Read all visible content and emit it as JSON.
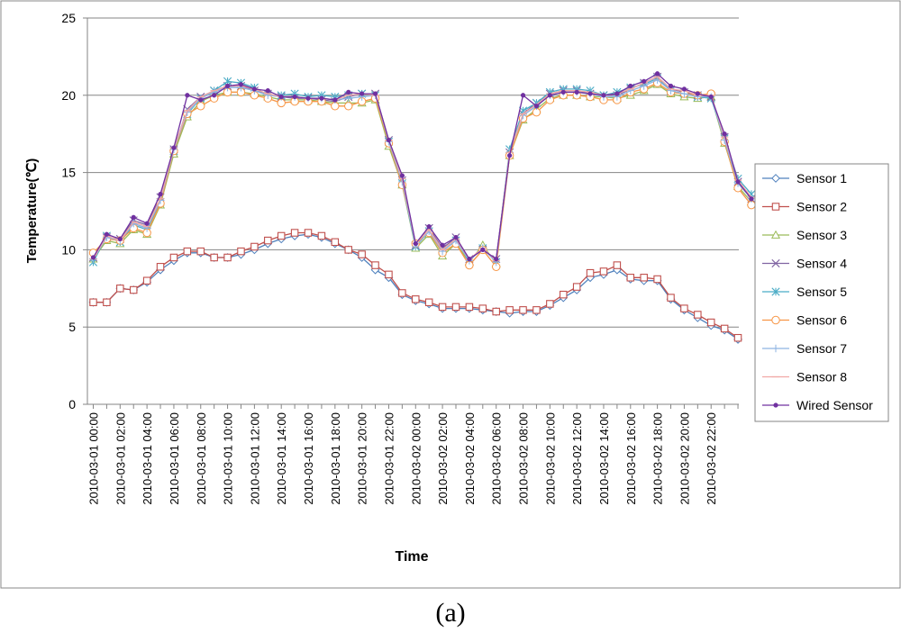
{
  "caption": "(a)",
  "chart_data": {
    "type": "line",
    "xlabel": "Time",
    "ylabel": "Temperature(℃)",
    "ylim": [
      0,
      25
    ],
    "yticks": [
      0,
      5,
      10,
      15,
      20,
      25
    ],
    "grid": "horizontal",
    "legend_position": "right",
    "x_start": "2010-03-01 00:00",
    "x_step_hours": 1,
    "x_tick_labels": [
      "2010-03-01 00:00",
      "2010-03-01 02:00",
      "2010-03-01 04:00",
      "2010-03-01 06:00",
      "2010-03-01 08:00",
      "2010-03-01 10:00",
      "2010-03-01 12:00",
      "2010-03-01 14:00",
      "2010-03-01 16:00",
      "2010-03-01 18:00",
      "2010-03-01 20:00",
      "2010-03-01 22:00",
      "2010-03-02 00:00",
      "2010-03-02 02:00",
      "2010-03-02 04:00",
      "2010-03-02 06:00",
      "2010-03-02 08:00",
      "2010-03-02 10:00",
      "2010-03-02 12:00",
      "2010-03-02 14:00",
      "2010-03-02 16:00",
      "2010-03-02 18:00",
      "2010-03-02 20:00",
      "2010-03-02 22:00"
    ],
    "series": [
      {
        "name": "Sensor 1",
        "color": "#4f81bd",
        "marker": "diamond-open",
        "values": [
          6.6,
          6.6,
          7.5,
          7.4,
          7.9,
          8.7,
          9.3,
          9.8,
          9.8,
          9.5,
          9.5,
          9.7,
          10.0,
          10.4,
          10.7,
          10.9,
          11.0,
          10.8,
          10.4,
          10.0,
          9.5,
          8.7,
          8.2,
          7.1,
          6.7,
          6.5,
          6.2,
          6.2,
          6.2,
          6.1,
          6.0,
          5.9,
          6.0,
          6.0,
          6.4,
          6.9,
          7.4,
          8.2,
          8.4,
          8.7,
          8.1,
          8.0,
          8.0,
          6.8,
          6.1,
          5.6,
          5.1,
          4.8,
          4.2
        ]
      },
      {
        "name": "Sensor 2",
        "color": "#c0504d",
        "marker": "square-open",
        "values": [
          6.6,
          6.6,
          7.5,
          7.4,
          8.0,
          8.9,
          9.5,
          9.9,
          9.9,
          9.5,
          9.5,
          9.9,
          10.2,
          10.6,
          10.9,
          11.1,
          11.1,
          10.9,
          10.5,
          10.0,
          9.7,
          9.0,
          8.4,
          7.2,
          6.8,
          6.6,
          6.3,
          6.3,
          6.3,
          6.2,
          6.0,
          6.1,
          6.1,
          6.1,
          6.5,
          7.1,
          7.6,
          8.5,
          8.6,
          9.0,
          8.2,
          8.2,
          8.1,
          6.9,
          6.2,
          5.8,
          5.3,
          4.9,
          4.3
        ]
      },
      {
        "name": "Sensor 3",
        "color": "#9bbb59",
        "marker": "triangle-open",
        "values": [
          9.4,
          10.6,
          10.4,
          11.3,
          11.0,
          12.9,
          16.2,
          18.6,
          19.6,
          20.0,
          20.2,
          20.2,
          20.1,
          19.9,
          19.7,
          19.7,
          19.7,
          19.6,
          19.5,
          19.5,
          19.5,
          19.7,
          16.7,
          14.2,
          10.1,
          11.0,
          9.6,
          10.4,
          9.2,
          10.3,
          9.1,
          16.1,
          18.4,
          19.1,
          19.8,
          20.0,
          20.0,
          19.9,
          19.9,
          19.8,
          20.0,
          20.3,
          20.7,
          20.1,
          19.9,
          19.8,
          19.9,
          16.9,
          14.1,
          13.1
        ]
      },
      {
        "name": "Sensor 4",
        "color": "#8064a2",
        "marker": "x",
        "values": [
          9.5,
          10.8,
          10.7,
          11.9,
          11.6,
          13.4,
          16.5,
          19.1,
          19.9,
          20.3,
          20.6,
          20.6,
          20.3,
          20.1,
          19.9,
          19.8,
          19.8,
          19.7,
          19.6,
          19.9,
          20.1,
          20.1,
          17.1,
          14.5,
          10.3,
          11.4,
          10.1,
          10.8,
          9.4,
          10.0,
          9.4,
          16.3,
          18.8,
          19.5,
          20.1,
          20.3,
          20.3,
          20.1,
          20.0,
          20.0,
          20.4,
          20.8,
          21.2,
          20.4,
          20.2,
          20.0,
          19.9,
          17.3,
          14.4,
          13.3
        ]
      },
      {
        "name": "Sensor 5",
        "color": "#4bacc6",
        "marker": "star",
        "values": [
          9.2,
          10.9,
          10.5,
          11.6,
          11.3,
          13.1,
          16.4,
          18.8,
          19.8,
          20.3,
          20.9,
          20.8,
          20.5,
          20.0,
          20.0,
          20.1,
          19.9,
          20.0,
          19.9,
          20.0,
          20.1,
          20.0,
          17.0,
          14.3,
          10.2,
          11.2,
          9.9,
          10.6,
          9.3,
          10.1,
          9.2,
          16.5,
          19.0,
          19.5,
          20.2,
          20.4,
          20.4,
          20.3,
          20.0,
          20.2,
          20.5,
          20.7,
          21.1,
          20.3,
          20.1,
          19.9,
          19.8,
          17.2,
          14.6,
          13.6
        ]
      },
      {
        "name": "Sensor 6",
        "color": "#f79646",
        "marker": "circle-open",
        "values": [
          9.8,
          10.7,
          10.6,
          11.4,
          11.1,
          13.0,
          16.4,
          18.8,
          19.3,
          19.8,
          20.2,
          20.2,
          20.0,
          19.8,
          19.5,
          19.6,
          19.6,
          19.6,
          19.3,
          19.3,
          19.6,
          19.8,
          16.9,
          14.2,
          10.4,
          11.1,
          9.8,
          10.4,
          9.0,
          10.0,
          8.9,
          16.1,
          18.5,
          18.9,
          19.7,
          20.0,
          20.0,
          19.9,
          19.7,
          19.7,
          20.2,
          20.4,
          20.8,
          20.2,
          20.1,
          20.0,
          20.1,
          17.0,
          14.0,
          12.9
        ]
      },
      {
        "name": "Sensor 7",
        "color": "#8db3e2",
        "marker": "plus",
        "values": [
          9.4,
          10.8,
          10.6,
          11.7,
          11.4,
          13.2,
          16.5,
          18.9,
          19.8,
          20.2,
          20.5,
          20.5,
          20.3,
          20.0,
          19.9,
          19.9,
          19.8,
          19.8,
          19.7,
          19.8,
          19.9,
          20.0,
          17.0,
          14.4,
          10.2,
          11.2,
          9.9,
          10.6,
          9.3,
          10.1,
          9.2,
          16.3,
          18.7,
          19.3,
          20.0,
          20.2,
          20.2,
          20.1,
          19.9,
          19.9,
          20.3,
          20.6,
          21.0,
          20.3,
          20.1,
          19.9,
          19.9,
          17.1,
          14.3,
          13.3
        ]
      },
      {
        "name": "Sensor 8",
        "color": "#f1a8a6",
        "marker": "dash",
        "values": [
          9.4,
          10.9,
          10.6,
          11.8,
          11.5,
          13.3,
          16.6,
          19.0,
          19.9,
          20.3,
          20.6,
          20.6,
          20.4,
          20.1,
          19.9,
          19.9,
          19.8,
          19.8,
          19.7,
          20.0,
          20.1,
          20.0,
          17.1,
          14.6,
          10.4,
          11.3,
          10.0,
          10.7,
          9.4,
          10.1,
          9.3,
          16.3,
          18.8,
          19.4,
          20.1,
          20.3,
          20.3,
          20.2,
          20.0,
          20.1,
          20.4,
          20.8,
          21.2,
          20.4,
          20.3,
          20.0,
          20.0,
          17.3,
          14.5,
          13.4
        ]
      },
      {
        "name": "Wired Sensor",
        "color": "#7030a0",
        "marker": "dot",
        "values": [
          9.5,
          11.0,
          10.7,
          12.1,
          11.7,
          13.6,
          16.6,
          20.0,
          19.7,
          20.0,
          20.6,
          20.7,
          20.4,
          20.3,
          19.9,
          19.9,
          19.8,
          19.8,
          19.7,
          20.2,
          20.1,
          20.1,
          17.1,
          14.8,
          10.4,
          11.5,
          10.3,
          10.8,
          9.4,
          10.0,
          9.4,
          16.1,
          20.0,
          19.3,
          20.0,
          20.2,
          20.2,
          20.1,
          20.0,
          20.1,
          20.6,
          20.9,
          21.4,
          20.6,
          20.4,
          20.1,
          19.9,
          17.5,
          14.4,
          13.3
        ]
      }
    ]
  }
}
